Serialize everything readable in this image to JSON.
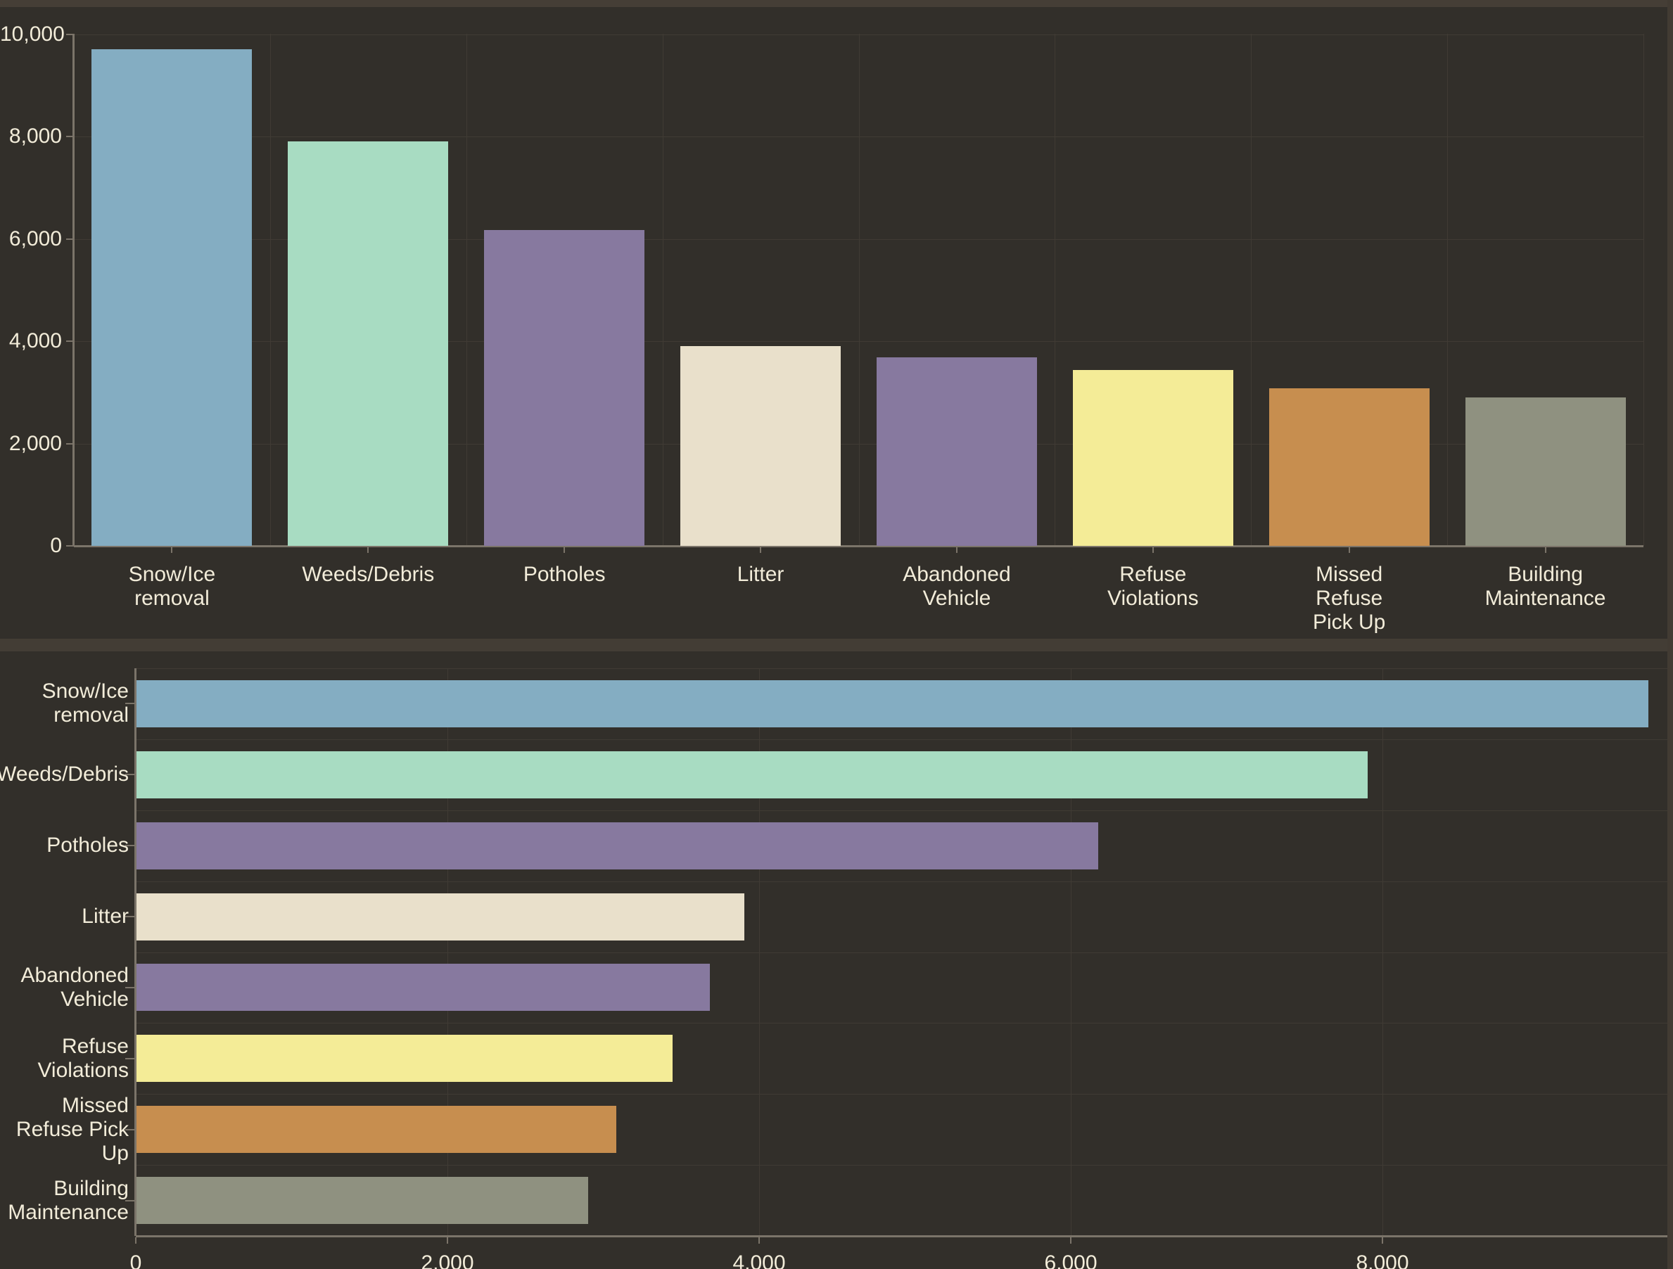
{
  "app": {
    "description": "Dark-themed dashboard with two bar charts of service request categories",
    "background_color": "#322f2a",
    "frame_color": "#453e36",
    "text_color": "#f2ecd9",
    "gridline_color": "#403b34",
    "axis_color": "#7b7469"
  },
  "chart_data": [
    {
      "type": "bar",
      "orientation": "vertical",
      "title": "",
      "xlabel": "",
      "ylabel": "",
      "categories": [
        "Snow/Ice removal",
        "Weeds/Debris",
        "Potholes",
        "Litter",
        "Abandoned Vehicle",
        "Refuse Violations",
        "Missed Refuse Pick Up",
        "Building Maintenance"
      ],
      "category_label_lines": [
        [
          "Snow/Ice",
          "removal"
        ],
        [
          "Weeds/Debris"
        ],
        [
          "Potholes"
        ],
        [
          "Litter"
        ],
        [
          "Abandoned",
          "Vehicle"
        ],
        [
          "Refuse",
          "Violations"
        ],
        [
          "Missed",
          "Refuse",
          "Pick Up"
        ],
        [
          "Building",
          "Maintenance"
        ]
      ],
      "values": [
        9700,
        7900,
        6170,
        3900,
        3680,
        3440,
        3080,
        2900
      ],
      "bar_colors": [
        "#84adc2",
        "#a8dcc2",
        "#87799f",
        "#e9e0cb",
        "#87799f",
        "#f4ec97",
        "#c78e4f",
        "#8f9180"
      ],
      "ylim": [
        0,
        10000
      ],
      "yticks": [
        0,
        2000,
        4000,
        6000,
        8000,
        10000
      ],
      "ytick_labels": [
        "0",
        "2,000",
        "4,000",
        "6,000",
        "8,000",
        "10,000"
      ],
      "grid": true,
      "legend": false
    },
    {
      "type": "bar",
      "orientation": "horizontal",
      "title": "",
      "xlabel": "",
      "ylabel": "",
      "categories": [
        "Snow/Ice removal",
        "Weeds/Debris",
        "Potholes",
        "Litter",
        "Abandoned Vehicle",
        "Refuse Violations",
        "Missed Refuse Pick Up",
        "Building Maintenance"
      ],
      "category_label_lines": [
        [
          "Snow/Ice",
          "removal"
        ],
        [
          "Weeds/Debris"
        ],
        [
          "Potholes"
        ],
        [
          "Litter"
        ],
        [
          "Abandoned",
          "Vehicle"
        ],
        [
          "Refuse",
          "Violations"
        ],
        [
          "Missed",
          "Refuse Pick",
          "Up"
        ],
        [
          "Building",
          "Maintenance"
        ]
      ],
      "values": [
        9700,
        7900,
        6170,
        3900,
        3680,
        3440,
        3080,
        2900
      ],
      "bar_colors": [
        "#84adc2",
        "#a8dcc2",
        "#87799f",
        "#e9e0cb",
        "#87799f",
        "#f4ec97",
        "#c78e4f",
        "#8f9180"
      ],
      "xlim": [
        0,
        9860
      ],
      "xticks": [
        0,
        2000,
        4000,
        6000,
        8000
      ],
      "xtick_labels": [
        "0",
        "2,000",
        "4,000",
        "6,000",
        "8,000"
      ],
      "grid": true,
      "legend": false
    }
  ]
}
